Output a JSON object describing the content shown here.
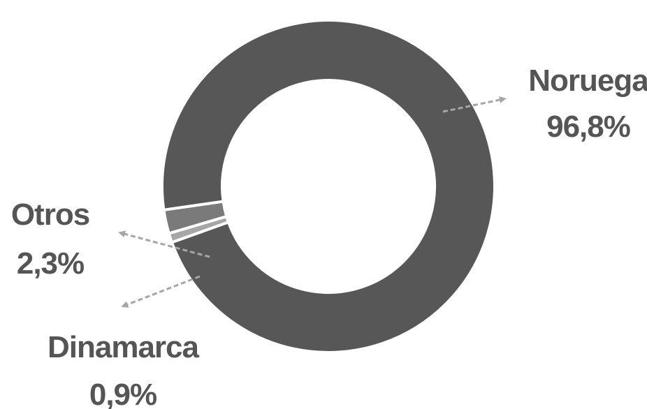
{
  "chart_data": {
    "type": "pie",
    "variant": "donut",
    "slices": [
      {
        "name": "Noruega",
        "value": 96.8,
        "label": "96,8%",
        "color": "#575757"
      },
      {
        "name": "Otros",
        "value": 2.3,
        "label": "2,3%",
        "color": "#7a7a7a"
      },
      {
        "name": "Dinamarca",
        "value": 0.9,
        "label": "0,9%",
        "color": "#a6a6a6"
      }
    ],
    "leader_color": "#a6a6a6",
    "label_color": "#555555"
  }
}
